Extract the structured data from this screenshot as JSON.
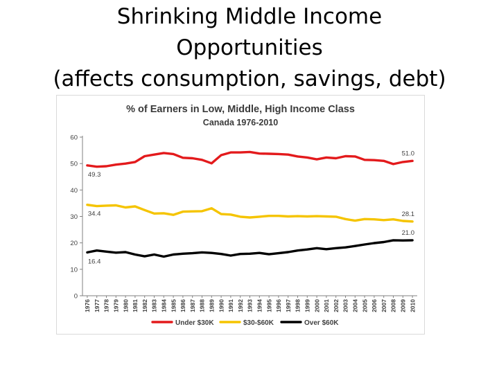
{
  "slide": {
    "title_lines": [
      "Shrinking Middle Income",
      "Opportunities",
      "(affects consumption, savings, debt)"
    ]
  },
  "chart_data": {
    "type": "line",
    "title": "% of Earners in Low, Middle, High Income Class",
    "subtitle": "Canada 1976-2010",
    "xlabel": "",
    "ylabel": "",
    "ylim": [
      0,
      60
    ],
    "yticks": [
      0,
      10,
      20,
      30,
      40,
      50,
      60
    ],
    "grid": false,
    "legend_position": "bottom",
    "x": [
      "1976",
      "1977",
      "1978",
      "1979",
      "1980",
      "1981",
      "1982",
      "1983",
      "1984",
      "1985",
      "1986",
      "1987",
      "1988",
      "1989",
      "1990",
      "1991",
      "1992",
      "1993",
      "1994",
      "1995",
      "1996",
      "1997",
      "1998",
      "1999",
      "2000",
      "2001",
      "2002",
      "2003",
      "2004",
      "2005",
      "2006",
      "2007",
      "2008",
      "2009",
      "2010"
    ],
    "series": [
      {
        "name": "Under $30K",
        "color": "#e31a1c",
        "values": [
          49.3,
          48.8,
          49.0,
          49.6,
          50.0,
          50.6,
          52.8,
          53.4,
          54.0,
          53.6,
          52.2,
          52.0,
          51.4,
          50.1,
          53.2,
          54.2,
          54.2,
          54.4,
          53.8,
          53.7,
          53.6,
          53.4,
          52.7,
          52.3,
          51.6,
          52.3,
          52.0,
          52.8,
          52.7,
          51.4,
          51.3,
          51.0,
          49.8,
          50.6,
          51.0
        ],
        "start_label": "49.3",
        "end_label": "51.0"
      },
      {
        "name": "$30-$60K",
        "color": "#f5c400",
        "values": [
          34.4,
          33.9,
          34.1,
          34.2,
          33.4,
          33.8,
          32.4,
          31.1,
          31.2,
          30.6,
          31.8,
          31.9,
          32.0,
          33.1,
          30.9,
          30.7,
          29.9,
          29.6,
          29.9,
          30.2,
          30.2,
          30.0,
          30.1,
          30.0,
          30.1,
          30.0,
          29.9,
          29.0,
          28.4,
          29.0,
          28.9,
          28.6,
          28.9,
          28.3,
          28.1
        ],
        "start_label": "34.4",
        "end_label": "28.1"
      },
      {
        "name": "Over $60K",
        "color": "#000000",
        "values": [
          16.4,
          17.1,
          16.7,
          16.3,
          16.5,
          15.6,
          14.9,
          15.6,
          14.8,
          15.6,
          15.9,
          16.1,
          16.4,
          16.2,
          15.8,
          15.2,
          15.8,
          15.9,
          16.2,
          15.7,
          16.1,
          16.5,
          17.1,
          17.5,
          18.0,
          17.6,
          18.0,
          18.3,
          18.8,
          19.4,
          19.9,
          20.3,
          21.0,
          20.9,
          21.0
        ],
        "start_label": "16.4",
        "end_label": "21.0"
      }
    ]
  }
}
